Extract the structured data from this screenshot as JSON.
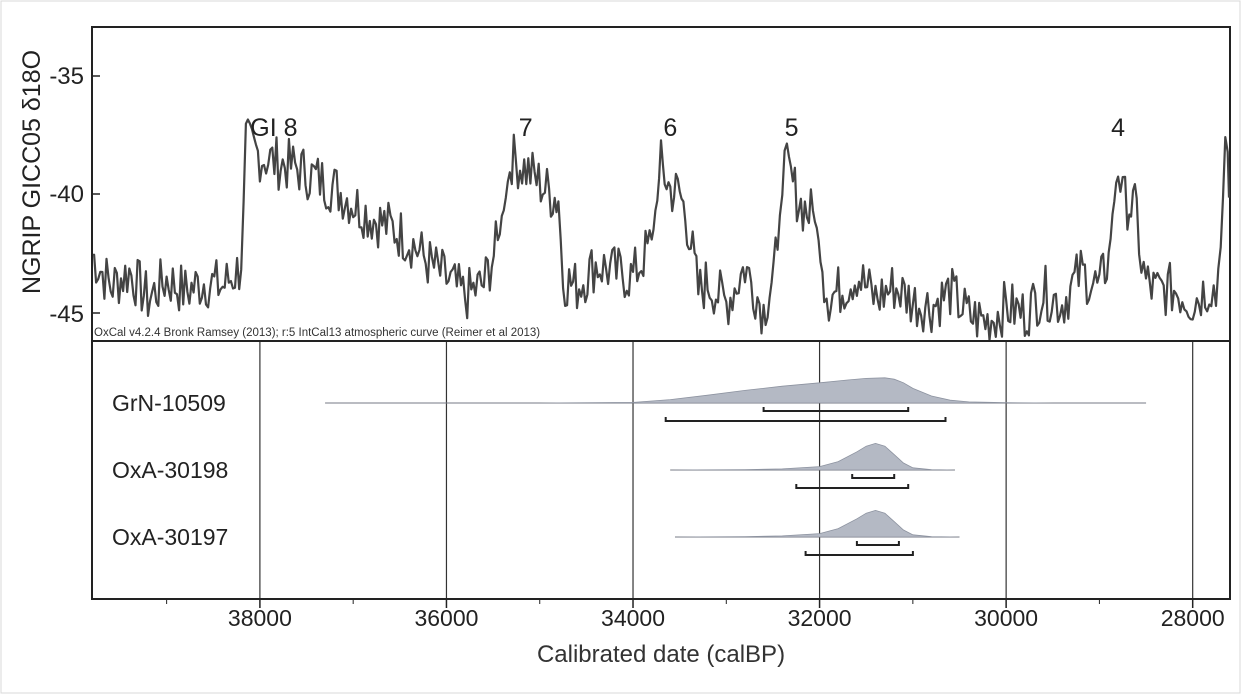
{
  "chart_data": [
    {
      "type": "line",
      "ylabel": "NGRIP GICC05 δ18O",
      "yticks": [
        "-35",
        "-40",
        "-45"
      ],
      "ylim": [
        -46,
        -33.3
      ],
      "xlim": [
        39800,
        27600
      ],
      "grid": false,
      "line_color": "#444444",
      "credit": "OxCal v4.2.4 Bronk Ramsey (2013); r:5 IntCal13 atmospheric curve (Reimer et al 2013)",
      "annotations": [
        {
          "label": "GI 8",
          "x": 37850,
          "y": -37.7
        },
        {
          "label": "7",
          "x": 35150,
          "y": -37.7
        },
        {
          "label": "6",
          "x": 33600,
          "y": -37.7
        },
        {
          "label": "5",
          "x": 32300,
          "y": -37.7
        },
        {
          "label": "4",
          "x": 28800,
          "y": -37.7
        }
      ],
      "x": [
        39800,
        39600,
        39400,
        39200,
        39000,
        38800,
        38600,
        38400,
        38200,
        38150,
        38000,
        37800,
        37600,
        37400,
        37200,
        37000,
        36800,
        36600,
        36400,
        36200,
        36000,
        35800,
        35600,
        35450,
        35300,
        35100,
        34900,
        34800,
        34750,
        34600,
        34400,
        34200,
        34000,
        33800,
        33700,
        33600,
        33500,
        33400,
        33300,
        33200,
        33000,
        32800,
        32600,
        32450,
        32400,
        32350,
        32200,
        32050,
        31950,
        31900,
        31800,
        31600,
        31400,
        31200,
        31000,
        30800,
        30600,
        30400,
        30200,
        30000,
        29800,
        29600,
        29400,
        29200,
        29000,
        28900,
        28800,
        28750,
        28700,
        28600,
        28550,
        28500,
        28400,
        28200,
        28000,
        27800,
        27750,
        27700,
        27650,
        27600
      ],
      "y": [
        -42.5,
        -43.8,
        -43.2,
        -44.3,
        -43.5,
        -44.0,
        -43.6,
        -43.8,
        -43.0,
        -38.0,
        -38.5,
        -38.8,
        -39.0,
        -39.4,
        -39.8,
        -40.4,
        -41.0,
        -41.4,
        -41.9,
        -42.8,
        -43.5,
        -44.2,
        -43.7,
        -42.0,
        -38.6,
        -39.2,
        -40.0,
        -40.3,
        -43.5,
        -43.8,
        -42.9,
        -43.2,
        -43.4,
        -42.0,
        -38.9,
        -39.9,
        -40.0,
        -41.5,
        -44.0,
        -43.6,
        -44.5,
        -43.0,
        -44.8,
        -42.5,
        -39.0,
        -39.1,
        -40.5,
        -41.0,
        -43.6,
        -44.2,
        -44.0,
        -43.3,
        -44.3,
        -43.8,
        -44.4,
        -44.6,
        -44.0,
        -45.0,
        -45.2,
        -44.6,
        -44.9,
        -44.0,
        -44.5,
        -43.2,
        -43.9,
        -42.5,
        -38.8,
        -40.3,
        -40.4,
        -40.8,
        -42.9,
        -43.6,
        -44.0,
        -43.9,
        -44.4,
        -43.7,
        -44.2,
        -42.0,
        -38.5,
        -40.2
      ]
    },
    {
      "type": "area",
      "xlabel": "Calibrated date (calBP)",
      "xticks": [
        "38000",
        "36000",
        "34000",
        "32000",
        "30000",
        "28000"
      ],
      "xlim": [
        39800,
        27600
      ],
      "grid": true,
      "fill_color": "#b4b9c4",
      "series": [
        {
          "name": "GrN-10509",
          "range_x": [
            37300,
            28500
          ],
          "x": [
            37300,
            35000,
            34000,
            33600,
            33200,
            32800,
            32400,
            32000,
            31700,
            31500,
            31300,
            31200,
            31100,
            31000,
            30800,
            30600,
            30400,
            30000,
            29500,
            28500
          ],
          "y": [
            0.0,
            0.0,
            0.02,
            0.12,
            0.28,
            0.45,
            0.6,
            0.72,
            0.82,
            0.88,
            0.9,
            0.85,
            0.72,
            0.52,
            0.25,
            0.1,
            0.04,
            0.01,
            0.0,
            0.0
          ],
          "brackets": [
            [
              32600,
              31050
            ],
            [
              33650,
              30650
            ]
          ]
        },
        {
          "name": "OxA-30198",
          "range_x": [
            33600,
            30550
          ],
          "x": [
            33600,
            32800,
            32400,
            32000,
            31800,
            31600,
            31500,
            31400,
            31300,
            31200,
            31100,
            31000,
            30800,
            30550
          ],
          "y": [
            0.0,
            0.01,
            0.04,
            0.12,
            0.3,
            0.65,
            0.85,
            0.95,
            0.85,
            0.55,
            0.25,
            0.08,
            0.01,
            0.0
          ],
          "brackets": [
            [
              31650,
              31200
            ],
            [
              32250,
              31050
            ]
          ]
        },
        {
          "name": "OxA-30197",
          "range_x": [
            33550,
            30500
          ],
          "x": [
            33550,
            32800,
            32400,
            32000,
            31800,
            31600,
            31500,
            31400,
            31300,
            31200,
            31100,
            31000,
            30800,
            30500
          ],
          "y": [
            0.0,
            0.01,
            0.04,
            0.12,
            0.3,
            0.65,
            0.85,
            0.95,
            0.85,
            0.55,
            0.25,
            0.08,
            0.01,
            0.0
          ],
          "brackets": [
            [
              31600,
              31150
            ],
            [
              32150,
              31000
            ]
          ]
        }
      ]
    }
  ]
}
